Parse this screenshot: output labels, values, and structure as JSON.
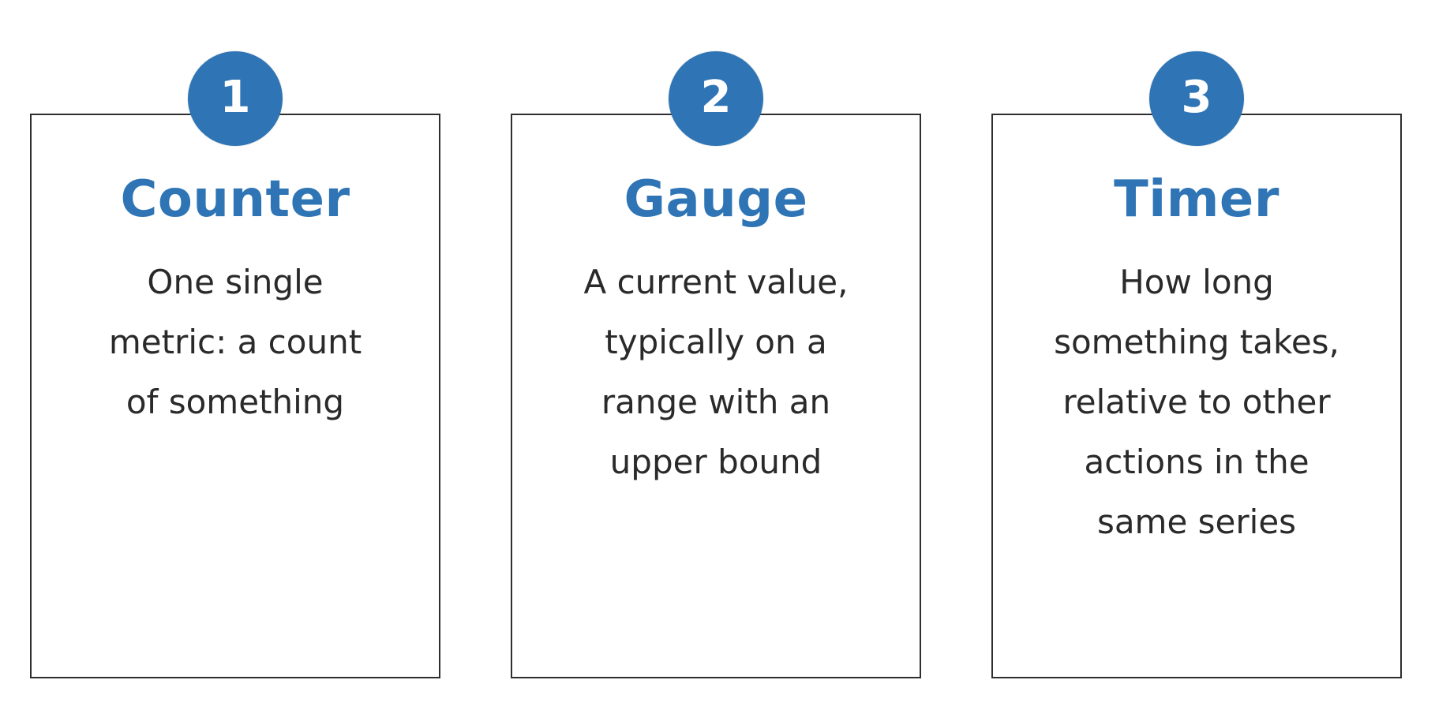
{
  "cards": [
    {
      "number": "1",
      "title": "Counter",
      "description_lines": [
        "One single",
        "metric: a count",
        "of something"
      ]
    },
    {
      "number": "2",
      "title": "Gauge",
      "description_lines": [
        "A current value,",
        "typically on a",
        "range with an",
        "upper bound"
      ]
    },
    {
      "number": "3",
      "title": "Timer",
      "description_lines": [
        "How long",
        "something takes,",
        "relative to other",
        "actions in the",
        "same series"
      ]
    }
  ],
  "colors": {
    "accent": "#2f75b5",
    "text": "#2a2a2a",
    "border": "#2e2e2e",
    "background": "#ffffff"
  }
}
